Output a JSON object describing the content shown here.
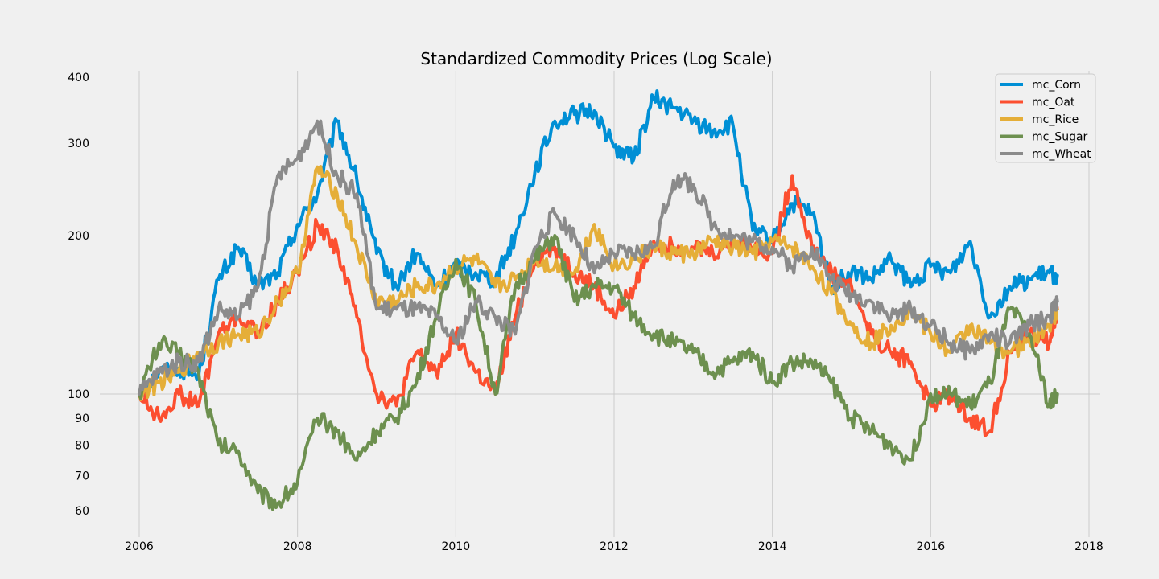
{
  "chart_data": {
    "type": "line",
    "title": "Standardized Commodity Prices (Log Scale)",
    "xlabel": "",
    "ylabel": "",
    "x_scale": "time (years)",
    "y_scale": "log",
    "xlim": [
      2005.5,
      2018.2
    ],
    "ylim": [
      52,
      420
    ],
    "x_ticks": [
      2006,
      2008,
      2010,
      2012,
      2014,
      2016,
      2018
    ],
    "x_tick_labels": [
      "2006",
      "2008",
      "2010",
      "2012",
      "2014",
      "2016",
      "2018"
    ],
    "y_ticks": [
      60,
      70,
      80,
      90,
      100,
      200,
      300,
      400
    ],
    "y_tick_labels": [
      "60",
      "70",
      "80",
      "90",
      "100",
      "200",
      "300",
      "400"
    ],
    "grid": true,
    "legend_position": "top-right",
    "x": [
      2006.0,
      2006.25,
      2006.5,
      2006.75,
      2007.0,
      2007.25,
      2007.5,
      2007.75,
      2008.0,
      2008.25,
      2008.5,
      2008.75,
      2009.0,
      2009.25,
      2009.5,
      2009.75,
      2010.0,
      2010.25,
      2010.5,
      2010.75,
      2011.0,
      2011.25,
      2011.5,
      2011.75,
      2012.0,
      2012.25,
      2012.5,
      2012.75,
      2013.0,
      2013.25,
      2013.5,
      2013.75,
      2014.0,
      2014.25,
      2014.5,
      2014.75,
      2015.0,
      2015.25,
      2015.5,
      2015.75,
      2016.0,
      2016.25,
      2016.5,
      2016.75,
      2017.0,
      2017.25,
      2017.5,
      2017.6
    ],
    "series": [
      {
        "name": "mc_Corn",
        "color": "#008fd5",
        "values": [
          100,
          110,
          112,
          108,
          165,
          190,
          160,
          170,
          210,
          240,
          330,
          255,
          185,
          160,
          185,
          160,
          175,
          170,
          165,
          200,
          265,
          330,
          340,
          345,
          295,
          280,
          365,
          350,
          330,
          315,
          325,
          205,
          195,
          230,
          220,
          160,
          170,
          165,
          180,
          160,
          175,
          170,
          195,
          140,
          160,
          165,
          170,
          168
        ]
      },
      {
        "name": "mc_Oat",
        "color": "#fc4f30",
        "values": [
          100,
          90,
          100,
          95,
          130,
          140,
          130,
          150,
          170,
          210,
          190,
          140,
          100,
          95,
          120,
          110,
          130,
          110,
          100,
          140,
          180,
          190,
          170,
          160,
          140,
          160,
          195,
          190,
          190,
          185,
          195,
          190,
          185,
          260,
          190,
          170,
          160,
          130,
          120,
          115,
          95,
          100,
          90,
          85,
          120,
          130,
          125,
          145
        ]
      },
      {
        "name": "mc_Rice",
        "color": "#e5ae38",
        "values": [
          100,
          105,
          110,
          120,
          125,
          130,
          130,
          150,
          170,
          270,
          240,
          190,
          150,
          150,
          160,
          160,
          175,
          180,
          160,
          165,
          180,
          175,
          170,
          210,
          175,
          180,
          190,
          185,
          185,
          195,
          190,
          185,
          195,
          190,
          175,
          155,
          135,
          125,
          135,
          145,
          130,
          120,
          135,
          125,
          120,
          125,
          135,
          145
        ]
      },
      {
        "name": "mc_Sugar",
        "color": "#6d904f",
        "values": [
          100,
          125,
          120,
          110,
          80,
          78,
          65,
          62,
          68,
          90,
          85,
          75,
          85,
          90,
          105,
          140,
          180,
          150,
          100,
          160,
          180,
          200,
          150,
          160,
          160,
          140,
          130,
          125,
          120,
          110,
          115,
          120,
          105,
          115,
          115,
          105,
          90,
          85,
          80,
          75,
          100,
          100,
          95,
          105,
          145,
          130,
          95,
          100
        ]
      },
      {
        "name": "mc_Wheat",
        "color": "#8b8b8b",
        "values": [
          100,
          110,
          115,
          115,
          145,
          140,
          160,
          260,
          280,
          330,
          260,
          240,
          145,
          145,
          145,
          140,
          125,
          150,
          140,
          130,
          190,
          220,
          200,
          170,
          185,
          185,
          190,
          255,
          250,
          210,
          200,
          195,
          190,
          175,
          190,
          165,
          155,
          150,
          140,
          145,
          135,
          125,
          120,
          130,
          125,
          135,
          140,
          150
        ]
      }
    ]
  }
}
